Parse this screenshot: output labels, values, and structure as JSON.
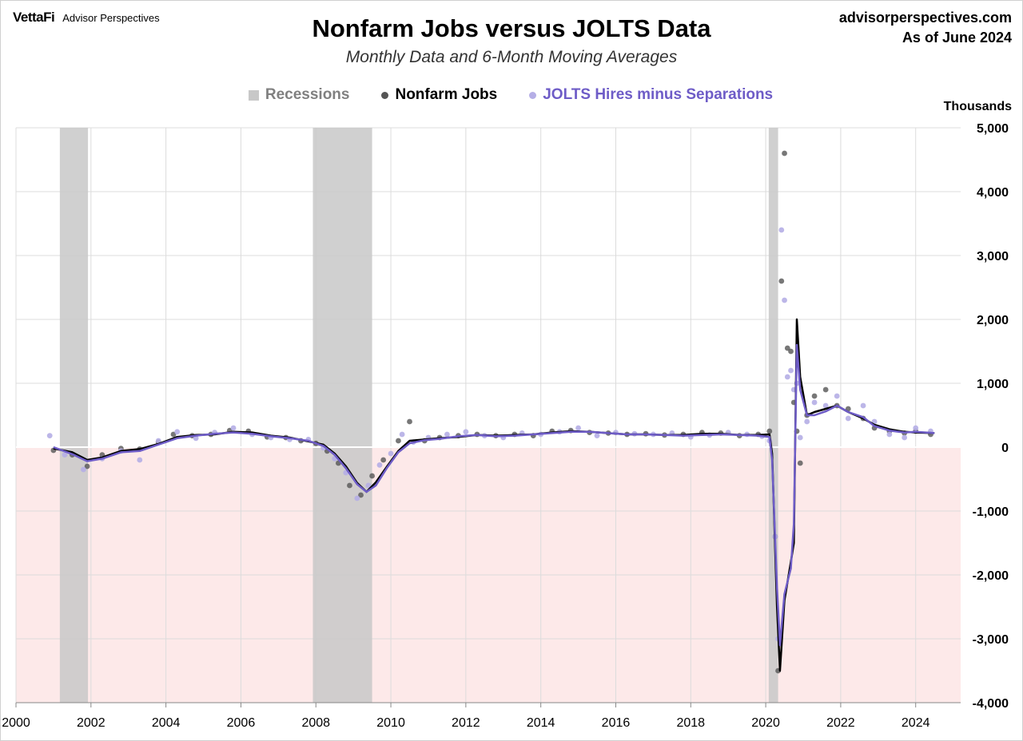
{
  "header": {
    "brand_logo": "VettaFi",
    "brand_name": "Advisor Perspectives",
    "site": "advisorperspectives.com",
    "as_of": "As of June 2024"
  },
  "chart_data": {
    "type": "scatter",
    "title": "Nonfarm Jobs versus JOLTS Data",
    "subtitle": "Monthly Data and 6-Month Moving Averages",
    "unit_label": "Thousands",
    "xlim": [
      2000,
      2025.2
    ],
    "ylim": [
      -4000,
      5000
    ],
    "x_ticks": [
      "2000",
      "2002",
      "2004",
      "2006",
      "2008",
      "2010",
      "2012",
      "2014",
      "2016",
      "2018",
      "2020",
      "2022",
      "2024"
    ],
    "y_ticks": [
      "5,000",
      "4,000",
      "3,000",
      "2,000",
      "1,000",
      "0",
      "-1,000",
      "-2,000",
      "-3,000",
      "-4,000"
    ],
    "y_tick_values": [
      5000,
      4000,
      3000,
      2000,
      1000,
      0,
      -1000,
      -2000,
      -3000,
      -4000
    ],
    "grid": true,
    "legend_position": "top-center",
    "negative_region_color": "#fde9e9",
    "recessions": [
      {
        "start": 2001.17,
        "end": 2001.92
      },
      {
        "start": 2007.92,
        "end": 2009.5
      },
      {
        "start": 2020.08,
        "end": 2020.33
      }
    ],
    "series": [
      {
        "name": "Recessions",
        "kind": "band",
        "color": "#c8c8c8",
        "label_color": "#808080"
      },
      {
        "name": "Nonfarm Jobs",
        "kind": "dots+ma",
        "dot_color": "#555555",
        "line_color": "#000000",
        "label_color": "#000000",
        "points": [
          [
            2001.0,
            -50
          ],
          [
            2001.5,
            -120
          ],
          [
            2001.9,
            -300
          ],
          [
            2002.3,
            -120
          ],
          [
            2002.8,
            -20
          ],
          [
            2003.3,
            -30
          ],
          [
            2003.8,
            80
          ],
          [
            2004.2,
            200
          ],
          [
            2004.7,
            180
          ],
          [
            2005.2,
            200
          ],
          [
            2005.7,
            260
          ],
          [
            2006.2,
            250
          ],
          [
            2006.7,
            160
          ],
          [
            2007.2,
            150
          ],
          [
            2007.6,
            100
          ],
          [
            2008.0,
            60
          ],
          [
            2008.3,
            -60
          ],
          [
            2008.6,
            -250
          ],
          [
            2008.9,
            -600
          ],
          [
            2009.2,
            -750
          ],
          [
            2009.5,
            -450
          ],
          [
            2009.8,
            -200
          ],
          [
            2010.2,
            100
          ],
          [
            2010.5,
            400
          ],
          [
            2010.9,
            100
          ],
          [
            2011.3,
            150
          ],
          [
            2011.8,
            180
          ],
          [
            2012.3,
            200
          ],
          [
            2012.8,
            180
          ],
          [
            2013.3,
            200
          ],
          [
            2013.8,
            180
          ],
          [
            2014.3,
            250
          ],
          [
            2014.8,
            260
          ],
          [
            2015.3,
            230
          ],
          [
            2015.8,
            220
          ],
          [
            2016.3,
            200
          ],
          [
            2016.8,
            210
          ],
          [
            2017.3,
            190
          ],
          [
            2017.8,
            200
          ],
          [
            2018.3,
            230
          ],
          [
            2018.8,
            220
          ],
          [
            2019.3,
            180
          ],
          [
            2019.8,
            200
          ],
          [
            2020.1,
            250
          ],
          [
            2020.25,
            -1400
          ],
          [
            2020.33,
            -3500
          ],
          [
            2020.42,
            2600
          ],
          [
            2020.5,
            4600
          ],
          [
            2020.58,
            1550
          ],
          [
            2020.67,
            1500
          ],
          [
            2020.75,
            700
          ],
          [
            2020.83,
            250
          ],
          [
            2020.92,
            -250
          ],
          [
            2021.1,
            500
          ],
          [
            2021.3,
            800
          ],
          [
            2021.6,
            900
          ],
          [
            2021.9,
            650
          ],
          [
            2022.2,
            600
          ],
          [
            2022.6,
            450
          ],
          [
            2022.9,
            300
          ],
          [
            2023.3,
            250
          ],
          [
            2023.7,
            220
          ],
          [
            2024.0,
            250
          ],
          [
            2024.4,
            200
          ]
        ],
        "ma": [
          [
            2001.0,
            -20
          ],
          [
            2001.5,
            -80
          ],
          [
            2001.9,
            -200
          ],
          [
            2002.3,
            -160
          ],
          [
            2002.8,
            -60
          ],
          [
            2003.3,
            -30
          ],
          [
            2003.8,
            50
          ],
          [
            2004.3,
            160
          ],
          [
            2004.8,
            190
          ],
          [
            2005.3,
            200
          ],
          [
            2005.8,
            240
          ],
          [
            2006.3,
            230
          ],
          [
            2006.8,
            180
          ],
          [
            2007.3,
            150
          ],
          [
            2007.8,
            90
          ],
          [
            2008.2,
            40
          ],
          [
            2008.5,
            -100
          ],
          [
            2008.8,
            -300
          ],
          [
            2009.1,
            -560
          ],
          [
            2009.35,
            -700
          ],
          [
            2009.6,
            -550
          ],
          [
            2009.9,
            -300
          ],
          [
            2010.2,
            -60
          ],
          [
            2010.5,
            100
          ],
          [
            2010.9,
            120
          ],
          [
            2011.3,
            140
          ],
          [
            2011.8,
            160
          ],
          [
            2012.3,
            190
          ],
          [
            2012.8,
            180
          ],
          [
            2013.3,
            190
          ],
          [
            2013.8,
            200
          ],
          [
            2014.3,
            230
          ],
          [
            2014.8,
            250
          ],
          [
            2015.3,
            240
          ],
          [
            2015.8,
            220
          ],
          [
            2016.3,
            200
          ],
          [
            2016.8,
            200
          ],
          [
            2017.3,
            190
          ],
          [
            2017.8,
            190
          ],
          [
            2018.3,
            210
          ],
          [
            2018.8,
            210
          ],
          [
            2019.3,
            190
          ],
          [
            2019.8,
            190
          ],
          [
            2020.1,
            200
          ],
          [
            2020.17,
            -100
          ],
          [
            2020.3,
            -2500
          ],
          [
            2020.38,
            -3500
          ],
          [
            2020.5,
            -2400
          ],
          [
            2020.67,
            -1800
          ],
          [
            2020.75,
            -1500
          ],
          [
            2020.83,
            2000
          ],
          [
            2020.92,
            1100
          ],
          [
            2021.1,
            500
          ],
          [
            2021.3,
            550
          ],
          [
            2021.6,
            600
          ],
          [
            2021.9,
            650
          ],
          [
            2022.2,
            550
          ],
          [
            2022.6,
            450
          ],
          [
            2022.9,
            350
          ],
          [
            2023.3,
            280
          ],
          [
            2023.7,
            240
          ],
          [
            2024.0,
            230
          ],
          [
            2024.5,
            220
          ]
        ]
      },
      {
        "name": "JOLTS Hires minus Separations",
        "kind": "dots+ma",
        "dot_color": "#b5aee6",
        "line_color": "#6e5cc7",
        "label_color": "#6e5cc7",
        "points": [
          [
            2000.9,
            180
          ],
          [
            2001.3,
            -120
          ],
          [
            2001.8,
            -350
          ],
          [
            2002.3,
            -180
          ],
          [
            2002.8,
            -60
          ],
          [
            2003.3,
            -200
          ],
          [
            2003.8,
            100
          ],
          [
            2004.3,
            240
          ],
          [
            2004.8,
            140
          ],
          [
            2005.3,
            230
          ],
          [
            2005.8,
            300
          ],
          [
            2006.3,
            200
          ],
          [
            2006.8,
            150
          ],
          [
            2007.3,
            120
          ],
          [
            2007.8,
            120
          ],
          [
            2008.2,
            -10
          ],
          [
            2008.5,
            -180
          ],
          [
            2008.8,
            -400
          ],
          [
            2009.1,
            -800
          ],
          [
            2009.4,
            -600
          ],
          [
            2009.7,
            -280
          ],
          [
            2010.0,
            -100
          ],
          [
            2010.3,
            200
          ],
          [
            2010.6,
            80
          ],
          [
            2011.0,
            150
          ],
          [
            2011.5,
            200
          ],
          [
            2012.0,
            240
          ],
          [
            2012.5,
            180
          ],
          [
            2013.0,
            150
          ],
          [
            2013.5,
            220
          ],
          [
            2014.0,
            200
          ],
          [
            2014.5,
            240
          ],
          [
            2015.0,
            300
          ],
          [
            2015.5,
            180
          ],
          [
            2016.0,
            230
          ],
          [
            2016.5,
            210
          ],
          [
            2017.0,
            200
          ],
          [
            2017.5,
            220
          ],
          [
            2018.0,
            160
          ],
          [
            2018.5,
            190
          ],
          [
            2019.0,
            230
          ],
          [
            2019.5,
            200
          ],
          [
            2019.9,
            170
          ],
          [
            2020.1,
            100
          ],
          [
            2020.25,
            -1400
          ],
          [
            2020.33,
            -3000
          ],
          [
            2020.42,
            3400
          ],
          [
            2020.5,
            2300
          ],
          [
            2020.58,
            1100
          ],
          [
            2020.67,
            1200
          ],
          [
            2020.75,
            900
          ],
          [
            2020.83,
            1000
          ],
          [
            2020.92,
            150
          ],
          [
            2021.1,
            400
          ],
          [
            2021.3,
            700
          ],
          [
            2021.6,
            650
          ],
          [
            2021.9,
            800
          ],
          [
            2022.2,
            450
          ],
          [
            2022.6,
            650
          ],
          [
            2022.9,
            400
          ],
          [
            2023.3,
            200
          ],
          [
            2023.7,
            150
          ],
          [
            2024.0,
            300
          ],
          [
            2024.4,
            250
          ]
        ],
        "ma": [
          [
            2001.0,
            0
          ],
          [
            2001.5,
            -110
          ],
          [
            2001.9,
            -220
          ],
          [
            2002.3,
            -180
          ],
          [
            2002.8,
            -80
          ],
          [
            2003.3,
            -60
          ],
          [
            2003.8,
            40
          ],
          [
            2004.3,
            140
          ],
          [
            2004.8,
            180
          ],
          [
            2005.3,
            210
          ],
          [
            2005.8,
            230
          ],
          [
            2006.3,
            210
          ],
          [
            2006.8,
            170
          ],
          [
            2007.3,
            140
          ],
          [
            2007.8,
            100
          ],
          [
            2008.2,
            20
          ],
          [
            2008.5,
            -120
          ],
          [
            2008.8,
            -330
          ],
          [
            2009.1,
            -580
          ],
          [
            2009.35,
            -700
          ],
          [
            2009.6,
            -600
          ],
          [
            2009.9,
            -320
          ],
          [
            2010.2,
            -80
          ],
          [
            2010.5,
            60
          ],
          [
            2010.9,
            110
          ],
          [
            2011.3,
            130
          ],
          [
            2011.8,
            170
          ],
          [
            2012.3,
            190
          ],
          [
            2012.8,
            170
          ],
          [
            2013.3,
            180
          ],
          [
            2013.8,
            200
          ],
          [
            2014.3,
            220
          ],
          [
            2014.8,
            240
          ],
          [
            2015.3,
            240
          ],
          [
            2015.8,
            220
          ],
          [
            2016.3,
            200
          ],
          [
            2016.8,
            200
          ],
          [
            2017.3,
            190
          ],
          [
            2017.8,
            180
          ],
          [
            2018.3,
            190
          ],
          [
            2018.8,
            200
          ],
          [
            2019.3,
            190
          ],
          [
            2019.8,
            180
          ],
          [
            2020.1,
            160
          ],
          [
            2020.17,
            -200
          ],
          [
            2020.3,
            -2200
          ],
          [
            2020.38,
            -3100
          ],
          [
            2020.5,
            -2300
          ],
          [
            2020.67,
            -1900
          ],
          [
            2020.75,
            -1200
          ],
          [
            2020.83,
            1600
          ],
          [
            2020.92,
            900
          ],
          [
            2021.1,
            500
          ],
          [
            2021.3,
            500
          ],
          [
            2021.6,
            560
          ],
          [
            2021.9,
            650
          ],
          [
            2022.2,
            550
          ],
          [
            2022.6,
            470
          ],
          [
            2022.9,
            330
          ],
          [
            2023.3,
            260
          ],
          [
            2023.7,
            230
          ],
          [
            2024.0,
            240
          ],
          [
            2024.5,
            220
          ]
        ]
      }
    ]
  }
}
